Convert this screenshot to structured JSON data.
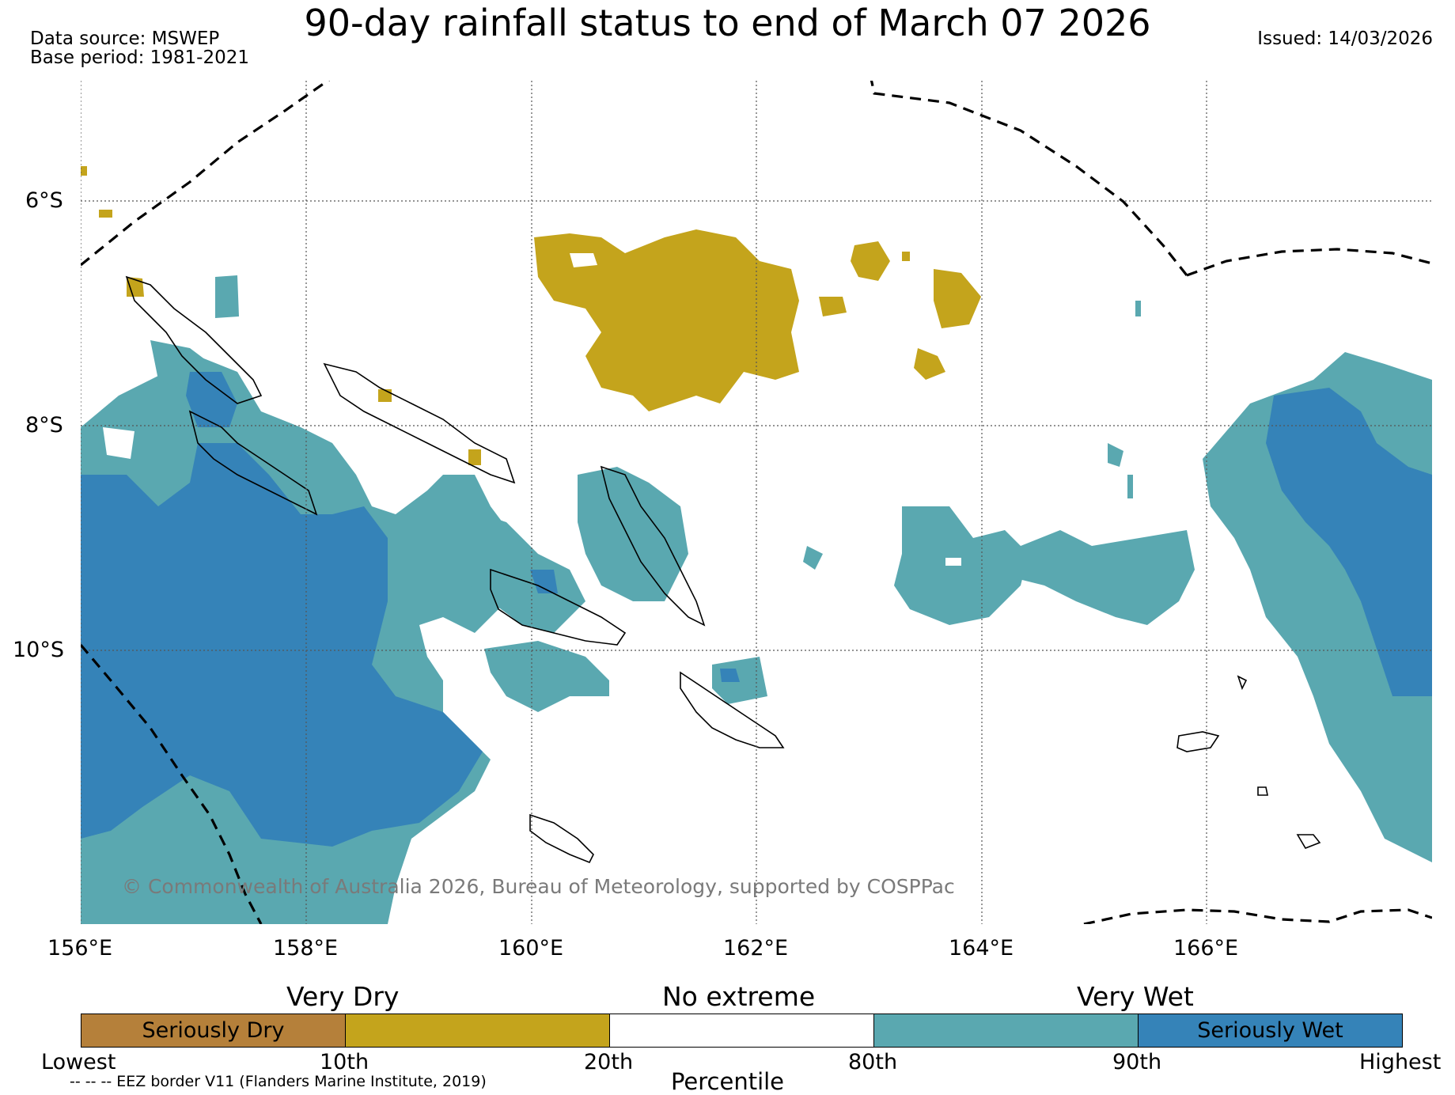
{
  "header": {
    "title": "90-day rainfall status to end of March 07 2026",
    "data_source": "Data source: MSWEP",
    "base_period": "Base period: 1981-2021",
    "issued": "Issued: 14/03/2026"
  },
  "map": {
    "lat_labels": [
      "6°S",
      "8°S",
      "10°S"
    ],
    "lon_labels": [
      "156°E",
      "158°E",
      "160°E",
      "162°E",
      "164°E",
      "166°E"
    ],
    "copyright": "© Commonwealth of Australia 2026, Bureau of Meteorology, supported by COSPPac",
    "colors": {
      "seriously_dry": "#b5803a",
      "very_dry": "#c4a41c",
      "no_extreme": "#ffffff",
      "very_wet": "#5aa8b0",
      "seriously_wet": "#3583b8"
    }
  },
  "legend": {
    "category_labels": [
      "Very Dry",
      "No extreme",
      "Very Wet"
    ],
    "swatches": [
      {
        "label": "Seriously Dry",
        "color": "#b5803a"
      },
      {
        "label": "",
        "color": "#c4a41c"
      },
      {
        "label": "",
        "color": "#ffffff"
      },
      {
        "label": "",
        "color": "#5aa8b0"
      },
      {
        "label": "Seriously Wet",
        "color": "#3583b8"
      }
    ],
    "ticks": [
      "Lowest",
      "10th",
      "20th",
      "80th",
      "90th",
      "Highest"
    ],
    "axis_label": "Percentile",
    "eez_note": "-- -- -- EEZ border V11 (Flanders Marine Institute, 2019)"
  }
}
